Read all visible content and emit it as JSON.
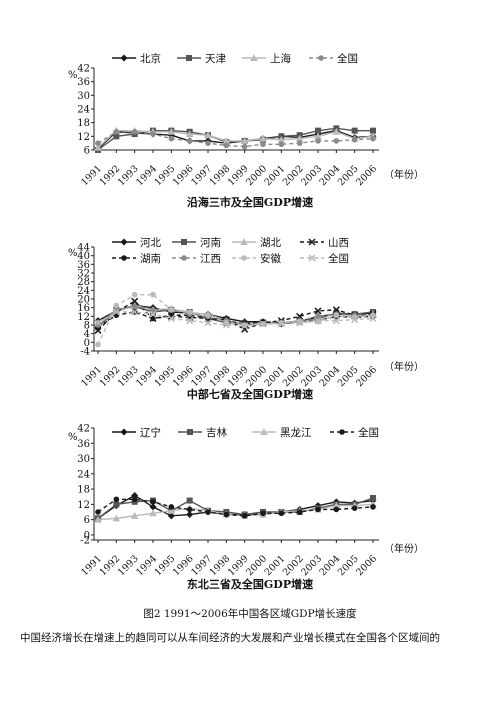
{
  "figure_caption": "图2 1991～2006年中国各区域GDP增长速度",
  "body_text": "中国经济增长在增速上的趋同可以从车间经济的大发展和产业增长模式在全国各个区域间的",
  "colors": {
    "black": "#1a1a1a",
    "darkgray": "#555555",
    "gray": "#8a8a8a",
    "lightgray": "#b9b9b9"
  },
  "chart_data": [
    {
      "type": "line",
      "title": "沿海三市及全国GDP增速",
      "ylabel": "%",
      "xunit": "（年份）",
      "x": [
        "1991",
        "1992",
        "1993",
        "1994",
        "1995",
        "1996",
        "1997",
        "1998",
        "1999",
        "2000",
        "2001",
        "2002",
        "2003",
        "2004",
        "2005",
        "2006"
      ],
      "yticks": [
        6,
        12,
        18,
        24,
        30,
        36,
        42
      ],
      "ylim": [
        6,
        42
      ],
      "legend_layout": "single-row-top",
      "series": [
        {
          "name": "北京",
          "style": "solid",
          "marker": "diamond",
          "color": "black",
          "values": [
            6.5,
            14,
            13.5,
            13,
            12.5,
            10,
            10,
            9,
            10,
            11,
            12,
            11.5,
            13,
            14.5,
            11.5,
            12
          ]
        },
        {
          "name": "天津",
          "style": "solid",
          "marker": "square",
          "color": "darkgray",
          "values": [
            6,
            12,
            13,
            14.5,
            14.5,
            14,
            12.5,
            9.5,
            10,
            10.5,
            12,
            12.5,
            14.5,
            15.5,
            14.5,
            14.5
          ]
        },
        {
          "name": "上海",
          "style": "solid",
          "marker": "triangle",
          "color": "lightgray",
          "values": [
            7,
            14.5,
            14.5,
            14,
            14,
            13,
            12.5,
            10,
            10,
            11,
            10.5,
            11,
            12,
            14,
            11,
            12
          ]
        },
        {
          "name": "全国",
          "style": "dashed",
          "marker": "circle",
          "color": "gray",
          "values": [
            9,
            14,
            14,
            13,
            11,
            10,
            9,
            8,
            7.5,
            8.5,
            8.5,
            9,
            10,
            10,
            10.5,
            11
          ]
        }
      ]
    },
    {
      "type": "line",
      "title": "中部七省及全国GDP增速",
      "ylabel": "%",
      "xunit": "（年份）",
      "x": [
        "1991",
        "1992",
        "1993",
        "1994",
        "1995",
        "1996",
        "1997",
        "1998",
        "1999",
        "2000",
        "2001",
        "2002",
        "2003",
        "2004",
        "2005",
        "2006"
      ],
      "yticks": [
        -4,
        0,
        4,
        8,
        12,
        16,
        20,
        24,
        28,
        32,
        36,
        40,
        44
      ],
      "ylim": [
        -4,
        44
      ],
      "legend_layout": "two-rows-top",
      "series": [
        {
          "name": "河北",
          "style": "solid",
          "marker": "diamond",
          "color": "black",
          "values": [
            10,
            14.5,
            17,
            16,
            14,
            13.5,
            13,
            11,
            9.5,
            9.5,
            8.5,
            9.5,
            12,
            13,
            13,
            13.5
          ]
        },
        {
          "name": "河南",
          "style": "solid",
          "marker": "square",
          "color": "darkgray",
          "values": [
            7,
            15,
            16.5,
            14,
            15,
            14,
            11,
            9,
            8,
            9,
            9,
            9.5,
            11,
            13.5,
            13,
            14
          ]
        },
        {
          "name": "湖北",
          "style": "solid",
          "marker": "triangle",
          "color": "lightgray",
          "values": [
            9,
            14,
            17,
            15,
            15.5,
            13.5,
            13,
            10,
            8.5,
            9,
            9,
            9.5,
            10.5,
            12,
            12,
            13
          ]
        },
        {
          "name": "山西",
          "style": "dashed",
          "marker": "x",
          "color": "black",
          "values": [
            5.5,
            14,
            19,
            11,
            12,
            11.5,
            11,
            10.5,
            6,
            9,
            10,
            12,
            14.5,
            15,
            12.5,
            13
          ]
        },
        {
          "name": "湖南",
          "style": "dashed",
          "marker": "circle",
          "color": "black",
          "values": [
            7,
            12.5,
            14,
            11,
            12.5,
            12.5,
            11,
            10,
            8.5,
            9.5,
            9,
            9.5,
            10,
            12,
            11.5,
            12
          ]
        },
        {
          "name": "江西",
          "style": "dashed",
          "marker": "circle",
          "color": "gray",
          "values": [
            8,
            15,
            16.5,
            15,
            15,
            13,
            12,
            10,
            8,
            8.5,
            9,
            10,
            12,
            13,
            12.5,
            12.5
          ]
        },
        {
          "name": "安徽",
          "style": "dashed",
          "marker": "circle",
          "color": "lightgray",
          "values": [
            -1,
            17,
            22,
            22,
            15,
            14,
            12.5,
            9,
            8,
            8.5,
            9,
            9.5,
            9.5,
            12.5,
            11.5,
            12.5
          ]
        },
        {
          "name": "全国",
          "style": "dashed",
          "marker": "x",
          "color": "lightgray",
          "values": [
            9,
            14,
            14,
            13,
            11,
            10,
            9,
            8,
            7.5,
            8.5,
            8.5,
            9,
            10,
            10,
            10.5,
            11
          ]
        }
      ]
    },
    {
      "type": "line",
      "title": "东北三省及全国GDP增速",
      "ylabel": "%",
      "xunit": "（年份）",
      "x": [
        "1991",
        "1992",
        "1993",
        "1994",
        "1995",
        "1996",
        "1997",
        "1998",
        "1999",
        "2000",
        "2001",
        "2002",
        "2003",
        "2004",
        "2005",
        "2006"
      ],
      "yticks": [
        -2,
        0,
        6,
        12,
        18,
        24,
        30,
        36,
        42
      ],
      "ylim": [
        -2,
        42
      ],
      "legend_layout": "single-row-top",
      "series": [
        {
          "name": "辽宁",
          "style": "solid",
          "marker": "diamond",
          "color": "black",
          "values": [
            6.5,
            11.5,
            15.5,
            11,
            7.5,
            8,
            9,
            8,
            8,
            8,
            9,
            10,
            11.5,
            13,
            12.5,
            13.5
          ]
        },
        {
          "name": "吉林",
          "style": "solid",
          "marker": "square",
          "color": "darkgray",
          "values": [
            6.5,
            12,
            13,
            13.5,
            9.5,
            13.5,
            9.5,
            9,
            8,
            9,
            9,
            9,
            10.5,
            12,
            12,
            14.5
          ]
        },
        {
          "name": "黑龙江",
          "style": "solid",
          "marker": "triangle",
          "color": "lightgray",
          "values": [
            6,
            6.5,
            7.5,
            8.5,
            9.5,
            10.5,
            9.5,
            8,
            7.5,
            8,
            9,
            9.5,
            10,
            11.5,
            11.5,
            12
          ]
        },
        {
          "name": "全国",
          "style": "dashed",
          "marker": "circle",
          "color": "black",
          "values": [
            9,
            14,
            14,
            13,
            11,
            10,
            9,
            8,
            7.5,
            8.5,
            8.5,
            9,
            10,
            10,
            10.5,
            11
          ]
        }
      ]
    }
  ]
}
